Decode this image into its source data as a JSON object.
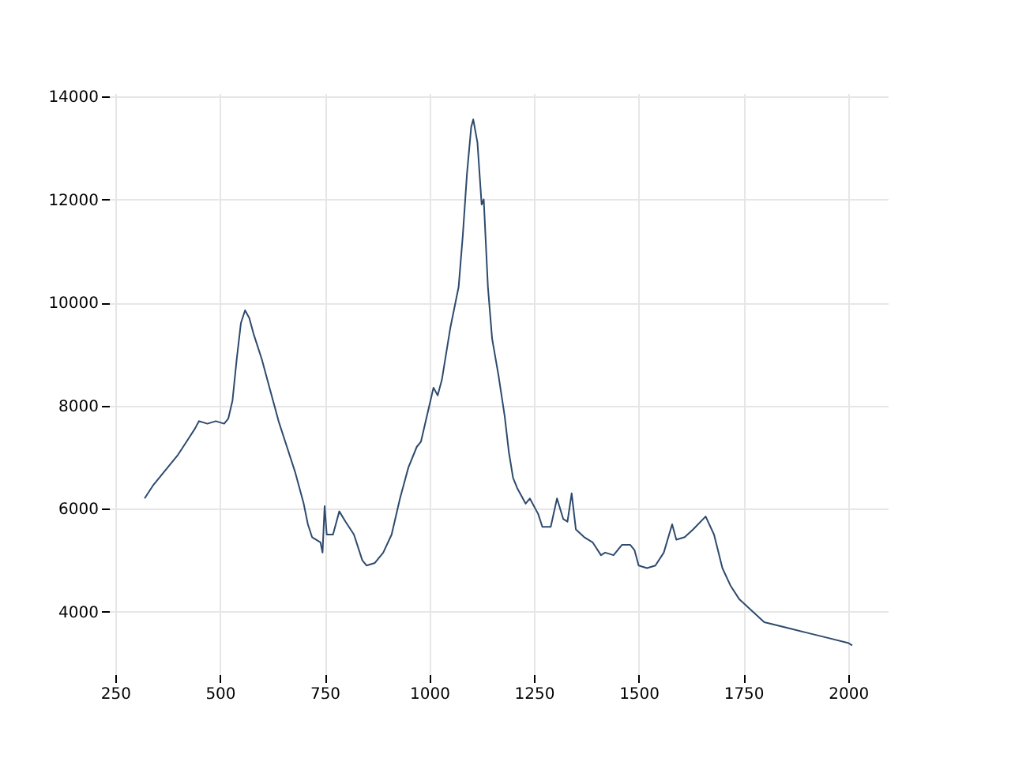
{
  "chart_data": {
    "type": "line",
    "xlim": [
      235,
      2095
    ],
    "ylim": [
      2790,
      14060
    ],
    "xticks": [
      250,
      500,
      750,
      1000,
      1250,
      1500,
      1750,
      2000
    ],
    "yticks": [
      4000,
      6000,
      8000,
      10000,
      12000,
      14000
    ],
    "grid": true,
    "x": [
      320,
      340,
      360,
      380,
      400,
      420,
      440,
      450,
      470,
      490,
      510,
      520,
      530,
      540,
      550,
      560,
      570,
      580,
      600,
      620,
      640,
      660,
      680,
      700,
      710,
      720,
      740,
      745,
      750,
      755,
      770,
      785,
      800,
      820,
      840,
      850,
      870,
      890,
      910,
      930,
      950,
      970,
      980,
      1000,
      1010,
      1020,
      1030,
      1050,
      1070,
      1080,
      1090,
      1100,
      1105,
      1115,
      1125,
      1130,
      1140,
      1150,
      1165,
      1180,
      1190,
      1200,
      1210,
      1230,
      1240,
      1260,
      1270,
      1290,
      1305,
      1320,
      1330,
      1340,
      1350,
      1370,
      1390,
      1410,
      1420,
      1440,
      1460,
      1480,
      1490,
      1500,
      1520,
      1540,
      1560,
      1580,
      1590,
      1610,
      1630,
      1660,
      1680,
      1700,
      1720,
      1740,
      1760,
      1780,
      1800,
      1850,
      1900,
      1950,
      2000,
      2010
    ],
    "series": [
      {
        "color": "#2d4a6d",
        "values": [
          6200,
          6450,
          6650,
          6850,
          7050,
          7300,
          7550,
          7700,
          7650,
          7700,
          7650,
          7750,
          8100,
          8900,
          9600,
          9850,
          9700,
          9400,
          8900,
          8300,
          7700,
          7200,
          6700,
          6100,
          5700,
          5450,
          5350,
          5150,
          6050,
          5500,
          5500,
          5950,
          5750,
          5500,
          5000,
          4900,
          4950,
          5150,
          5500,
          6200,
          6800,
          7200,
          7300,
          8000,
          8350,
          8200,
          8500,
          9500,
          10300,
          11300,
          12500,
          13400,
          13550,
          13100,
          11900,
          12000,
          10300,
          9300,
          8600,
          7800,
          7100,
          6600,
          6400,
          6100,
          6200,
          5900,
          5650,
          5650,
          6200,
          5800,
          5750,
          6300,
          5600,
          5450,
          5350,
          5100,
          5150,
          5100,
          5300,
          5300,
          5200,
          4900,
          4850,
          4900,
          5150,
          5700,
          5400,
          5450,
          5600,
          5850,
          5500,
          4850,
          4500,
          4250,
          4100,
          3950,
          3800,
          3700,
          3600,
          3500,
          3400,
          3350
        ]
      }
    ]
  }
}
